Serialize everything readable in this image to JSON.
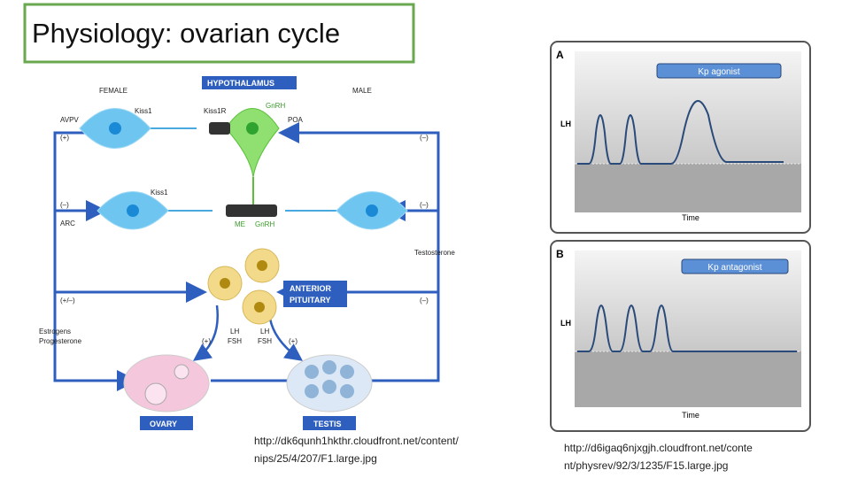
{
  "title": "Physiology: ovarian cycle",
  "left_figure": {
    "labels": [
      "FEMALE",
      "HYPOTHALAMUS",
      "MALE",
      "Kiss1",
      "Kiss1R",
      "GnRH",
      "AVPV",
      "(+)",
      "POA",
      "(–)",
      "Kiss1",
      "(–)",
      "ARC",
      "(–)",
      "ME",
      "GnRH",
      "Testosterone",
      "(+/–)",
      "ANTERIOR",
      "PITUITARY",
      "(–)",
      "Estrogens",
      "Progesterone",
      "LH",
      "FSH",
      "(+)",
      "LH",
      "FSH",
      "(+)",
      "OVARY",
      "TESTIS"
    ],
    "source": [
      "http://dk6qunh1hkthr.cloudfront.net/content/",
      "nips/25/4/207/F1.large.jpg"
    ]
  },
  "right_figure": {
    "panels": [
      {
        "letter": "A",
        "legend": "Kp agonist",
        "y_label": "LH",
        "x_label": "Time"
      },
      {
        "letter": "B",
        "legend": "Kp antagonist",
        "y_label": "LH",
        "x_label": "Time"
      }
    ],
    "source": [
      "http://d6igaq6njxgjh.cloudfront.net/conte",
      "nt/physrev/92/3/1235/F15.large.jpg"
    ]
  }
}
